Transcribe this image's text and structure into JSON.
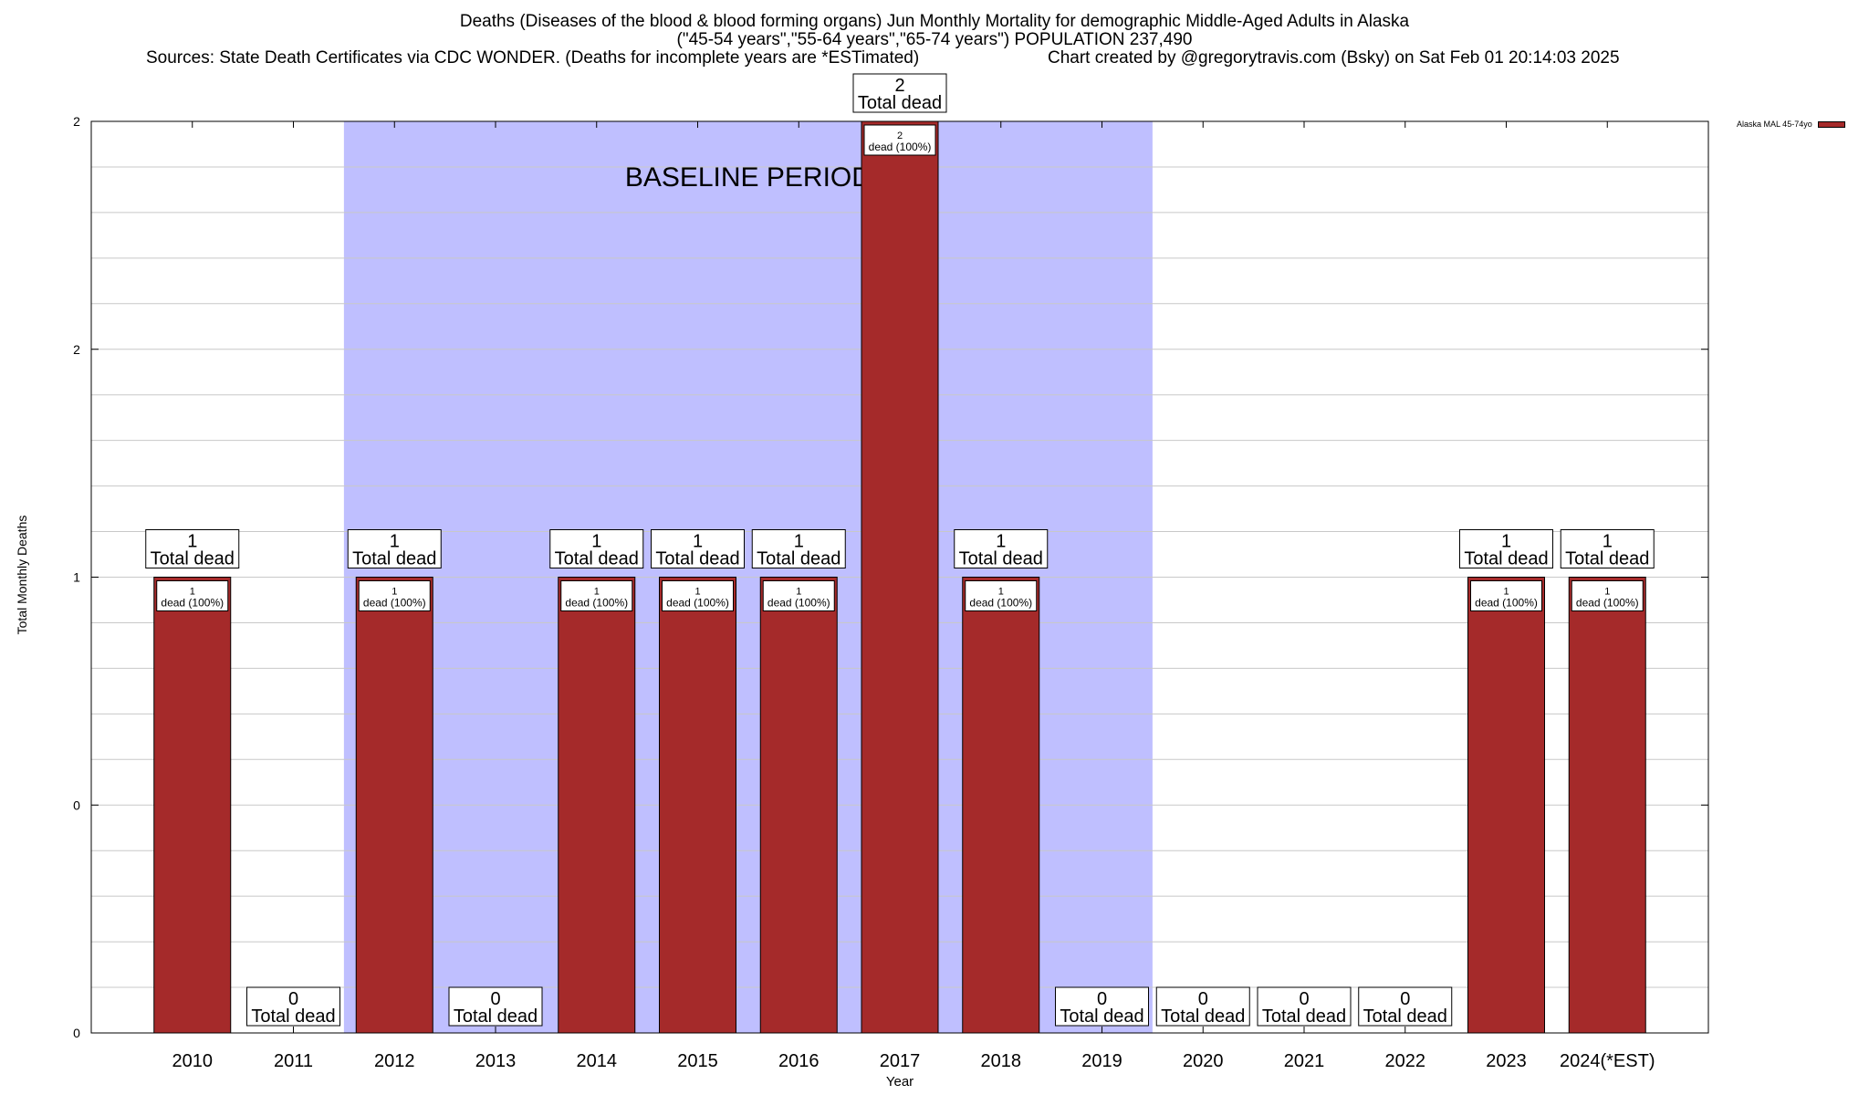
{
  "chart_data": {
    "type": "bar",
    "title": "Deaths (Diseases of the blood & blood forming organs) Jun Monthly Mortality for demographic Middle-Aged Adults in Alaska",
    "subtitle": "(\"45-54 years\",\"55-64 years\",\"65-74 years\") POPULATION 237,490",
    "source": "Sources: State Death Certificates via CDC WONDER. (Deaths for incomplete years are *ESTimated)",
    "credit": "Chart created by @gregorytravis.com (Bsky) on Sat Feb 01 20:14:03 2025",
    "xlabel": "Year",
    "ylabel": "Total Monthly Deaths",
    "ylim": [
      0,
      2
    ],
    "y_ticks": [
      0,
      0.5,
      1,
      1.5,
      2
    ],
    "y_tick_labels": [
      "0",
      "0",
      "1",
      "2",
      "2"
    ],
    "grid": true,
    "categories": [
      "2010",
      "2011",
      "2012",
      "2013",
      "2014",
      "2015",
      "2016",
      "2017",
      "2018",
      "2019",
      "2020",
      "2021",
      "2022",
      "2023",
      "2024(*EST)"
    ],
    "series": [
      {
        "name": "Alaska MAL 45-74yo",
        "color": "#a52a2a",
        "values": [
          1,
          0,
          1,
          0,
          1,
          1,
          1,
          2,
          1,
          0,
          0,
          0,
          0,
          1,
          1
        ]
      }
    ],
    "total_label_suffix": "Total dead",
    "bar_label_suffix": "dead (100%)",
    "baseline": {
      "label": "BASELINE PERIOD",
      "start_category": "2012",
      "end_category": "2019",
      "color": "#bfbfff"
    },
    "legend_position": "top-right"
  }
}
